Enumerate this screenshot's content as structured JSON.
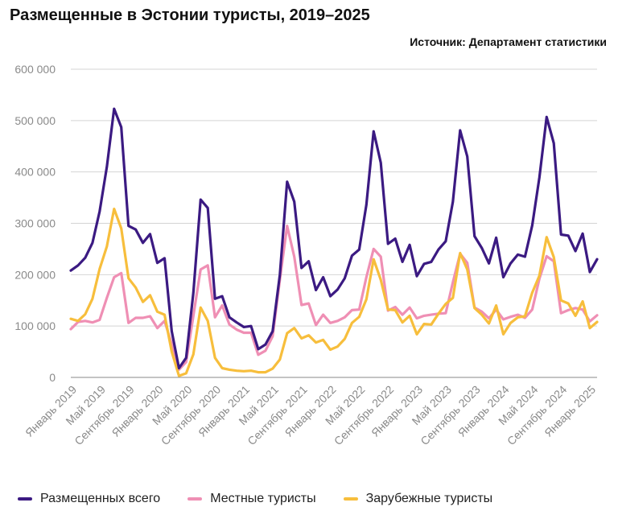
{
  "title": "Размещенные в Эстонии туристы, 2019–2025",
  "source": "Источник: Департамент статистики",
  "chart_data": {
    "type": "line",
    "ylim": [
      0,
      600000
    ],
    "yticks": [
      0,
      100000,
      200000,
      300000,
      400000,
      500000,
      600000
    ],
    "ytick_labels": [
      "0",
      "100 000",
      "200 000",
      "300 000",
      "400 000",
      "500 000",
      "600 000"
    ],
    "xtick_labels": [
      "Январь 2019",
      "Май 2019",
      "Сентябрь 2019",
      "Январь 2020",
      "Май 2020",
      "Сентябрь 2020",
      "Январь 2021",
      "Май 2021",
      "Сентябрь 2021",
      "Январь 2022",
      "Май 2022",
      "Сентябрь 2022",
      "Январь 2023",
      "Май 2023",
      "Сентябрь 2023",
      "Январь 2024",
      "Май 2024",
      "Сентябрь 2024",
      "Январь 2025"
    ],
    "xtick_step_months": 4,
    "x_start": "2019-01",
    "grid": true,
    "legend_position": "bottom",
    "series": [
      {
        "name": "Размещенных всего",
        "color": "#3b1a82",
        "values": [
          208000,
          218000,
          233000,
          262000,
          323000,
          410000,
          523000,
          487000,
          295000,
          288000,
          262000,
          279000,
          223000,
          232000,
          90000,
          18000,
          38000,
          165000,
          346000,
          330000,
          153000,
          158000,
          117000,
          107000,
          98000,
          100000,
          55000,
          64000,
          90000,
          200000,
          381000,
          342000,
          213000,
          226000,
          170000,
          195000,
          158000,
          171000,
          193000,
          237000,
          249000,
          336000,
          479000,
          418000,
          260000,
          270000,
          225000,
          258000,
          197000,
          221000,
          225000,
          249000,
          265000,
          342000,
          481000,
          430000,
          275000,
          252000,
          222000,
          272000,
          195000,
          222000,
          239000,
          235000,
          296000,
          389000,
          507000,
          456000,
          278000,
          276000,
          246000,
          280000,
          205000,
          230000
        ]
      },
      {
        "name": "Местные туристы",
        "color": "#ef8fb4",
        "values": [
          94000,
          108000,
          110000,
          107000,
          112000,
          155000,
          195000,
          203000,
          106000,
          116000,
          116000,
          119000,
          96000,
          110000,
          65000,
          15000,
          30000,
          120000,
          210000,
          218000,
          117000,
          140000,
          103000,
          93000,
          87000,
          87000,
          44000,
          52000,
          80000,
          190000,
          295000,
          235000,
          141000,
          144000,
          102000,
          122000,
          106000,
          110000,
          117000,
          131000,
          132000,
          195000,
          250000,
          235000,
          130000,
          137000,
          122000,
          136000,
          115000,
          120000,
          122000,
          124000,
          125000,
          185000,
          241000,
          223000,
          136000,
          128000,
          115000,
          132000,
          113000,
          118000,
          122000,
          116000,
          132000,
          192000,
          236000,
          226000,
          125000,
          131000,
          135000,
          132000,
          109000,
          121000
        ]
      },
      {
        "name": "Зарубежные туристы",
        "color": "#f7be3c",
        "values": [
          114000,
          110000,
          123000,
          153000,
          211000,
          255000,
          328000,
          290000,
          193000,
          175000,
          147000,
          160000,
          128000,
          122000,
          50000,
          3000,
          8000,
          45000,
          136000,
          110000,
          38000,
          18000,
          15000,
          13000,
          12000,
          13000,
          10000,
          10000,
          17000,
          35000,
          86000,
          96000,
          76000,
          82000,
          68000,
          73000,
          54000,
          60000,
          75000,
          106000,
          118000,
          152000,
          230000,
          190000,
          132000,
          131000,
          107000,
          120000,
          84000,
          104000,
          103000,
          124000,
          143000,
          155000,
          242000,
          210000,
          135000,
          122000,
          105000,
          140000,
          84000,
          106000,
          117000,
          119000,
          165000,
          198000,
          273000,
          234000,
          150000,
          144000,
          120000,
          148000,
          96000,
          108000
        ]
      }
    ]
  }
}
